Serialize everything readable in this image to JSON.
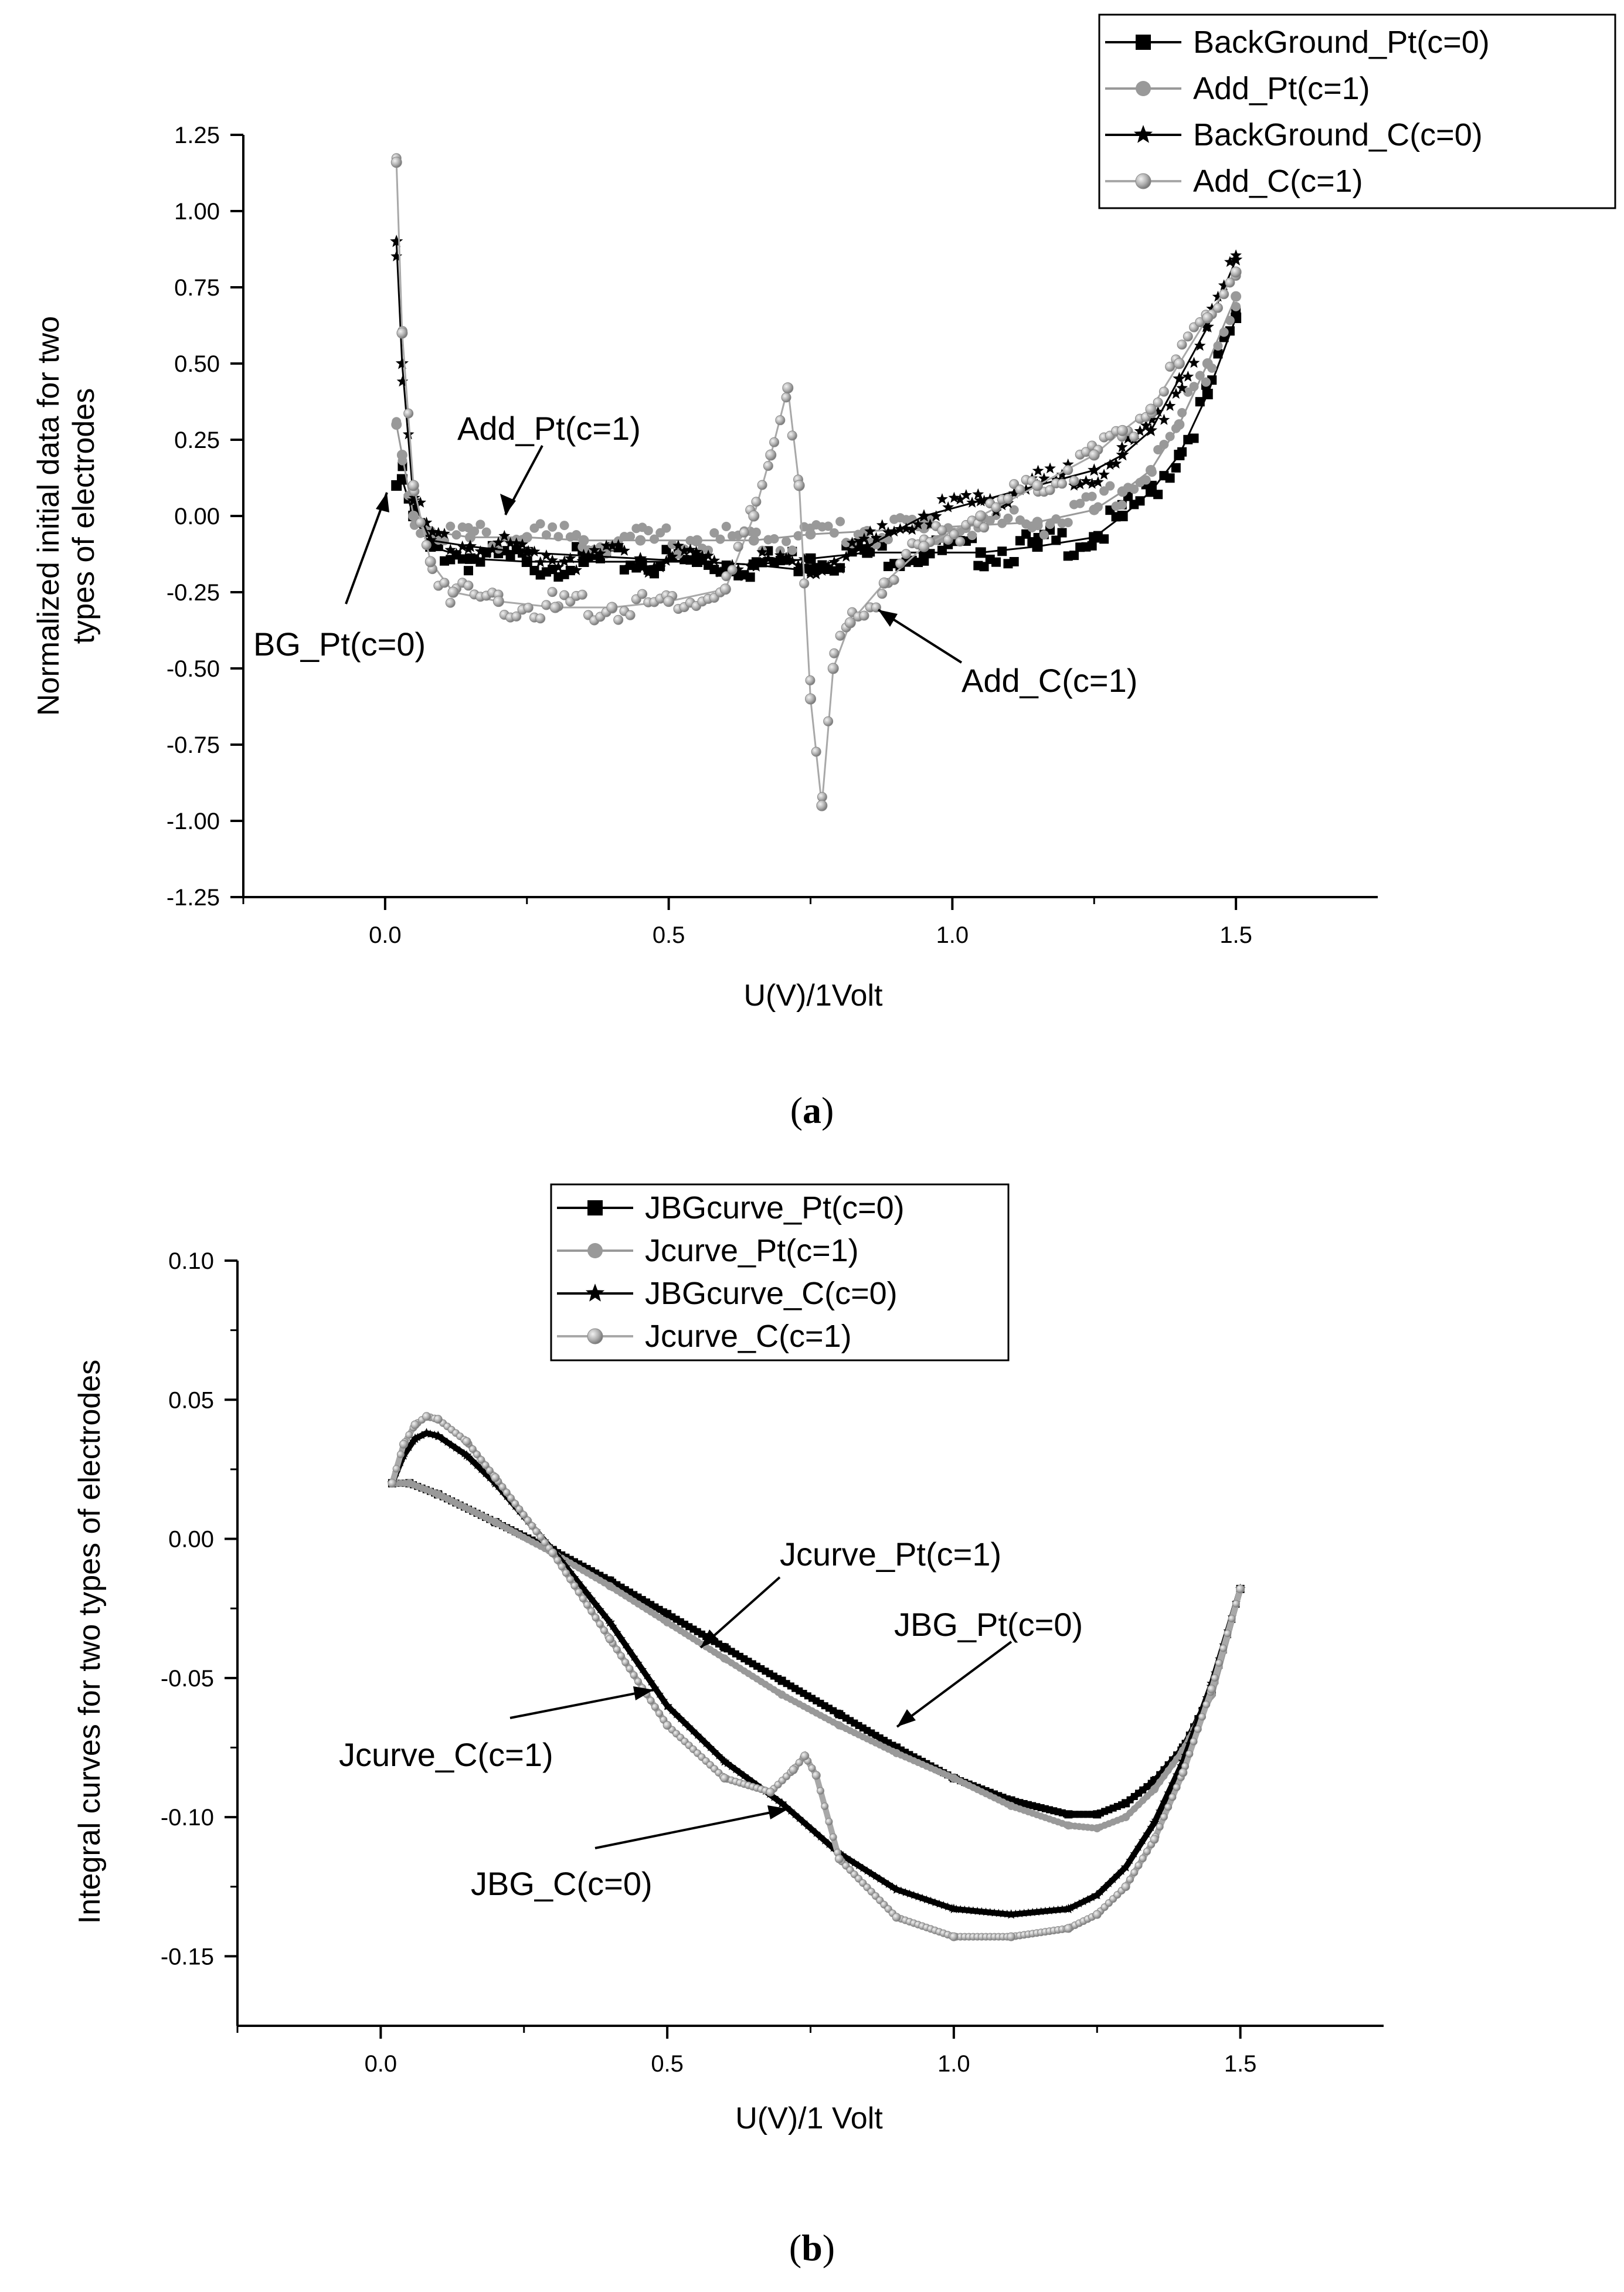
{
  "chart_data": [
    {
      "type": "scatter",
      "panel_label": "a",
      "xlabel": "U(V)/1Volt",
      "ylabel_lines": [
        "Normalized initial data for two",
        "types of electrodes"
      ],
      "xlim": [
        -0.25,
        1.75
      ],
      "ylim": [
        -1.25,
        1.25
      ],
      "xticks": [
        0.0,
        0.5,
        1.0,
        1.5
      ],
      "xtick_labels": [
        "0.0",
        "0.5",
        "1.0",
        "1.5"
      ],
      "yticks": [
        -1.25,
        -1.0,
        -0.75,
        -0.5,
        -0.25,
        0.0,
        0.25,
        0.5,
        0.75,
        1.0,
        1.25
      ],
      "ytick_labels": [
        "-1.25",
        "-1.00",
        "-0.75",
        "-0.50",
        "-0.25",
        "0.00",
        "0.25",
        "0.50",
        "0.75",
        "1.00",
        "1.25"
      ],
      "legend": [
        {
          "label": "BackGround_Pt(c=0)",
          "marker": "square",
          "color": "#000000"
        },
        {
          "label": "Add_Pt(c=1)",
          "marker": "circle",
          "color": "#999999"
        },
        {
          "label": "BackGround_C(c=0)",
          "marker": "star",
          "color": "#000000"
        },
        {
          "label": "Add_C(c=1)",
          "marker": "sphere",
          "color": "#a8a8a8"
        }
      ],
      "series": [
        {
          "name": "BackGround_Pt(c=0)",
          "color": "#000000",
          "x": [
            0.02,
            0.03,
            0.05,
            0.08,
            0.15,
            0.25,
            0.35,
            0.45,
            0.55,
            0.65,
            0.75,
            0.85,
            0.95,
            1.05,
            1.15,
            1.25,
            1.3,
            1.35,
            1.4,
            1.45,
            1.5
          ],
          "y": [
            0.1,
            0.12,
            0.0,
            -0.1,
            -0.14,
            -0.15,
            -0.15,
            -0.15,
            -0.15,
            -0.16,
            -0.14,
            -0.12,
            -0.12,
            -0.12,
            -0.1,
            -0.07,
            0.0,
            0.08,
            0.2,
            0.4,
            0.65
          ]
        },
        {
          "name": "Add_Pt(c=1)",
          "color": "#999999",
          "x": [
            0.02,
            0.03,
            0.05,
            0.08,
            0.15,
            0.25,
            0.35,
            0.45,
            0.55,
            0.65,
            0.75,
            0.85,
            0.95,
            1.05,
            1.15,
            1.25,
            1.3,
            1.35,
            1.4,
            1.45,
            1.5
          ],
          "y": [
            0.3,
            0.2,
            0.0,
            -0.05,
            -0.07,
            -0.07,
            -0.08,
            -0.08,
            -0.08,
            -0.08,
            -0.06,
            -0.05,
            -0.04,
            -0.03,
            -0.02,
            0.02,
            0.08,
            0.15,
            0.3,
            0.5,
            0.72
          ]
        },
        {
          "name": "BackGround_C(c=0)",
          "color": "#000000",
          "x": [
            0.02,
            0.03,
            0.05,
            0.08,
            0.15,
            0.25,
            0.35,
            0.45,
            0.55,
            0.65,
            0.75,
            0.85,
            0.95,
            1.05,
            1.15,
            1.25,
            1.3,
            1.35,
            1.4,
            1.45,
            1.5
          ],
          "y": [
            0.9,
            0.5,
            0.05,
            -0.08,
            -0.1,
            -0.12,
            -0.13,
            -0.14,
            -0.15,
            -0.16,
            -0.18,
            -0.1,
            0.0,
            0.05,
            0.1,
            0.15,
            0.2,
            0.28,
            0.45,
            0.62,
            0.84
          ]
        },
        {
          "name": "Add_C(c=1)",
          "color": "#a8a8a8",
          "x": [
            0.02,
            0.03,
            0.05,
            0.08,
            0.12,
            0.2,
            0.3,
            0.4,
            0.5,
            0.6,
            0.65,
            0.68,
            0.71,
            0.73,
            0.75,
            0.77,
            0.79,
            0.82,
            0.88,
            0.95,
            1.05,
            1.15,
            1.25,
            1.3,
            1.35,
            1.4,
            1.45,
            1.5
          ],
          "y": [
            1.16,
            0.6,
            0.1,
            -0.15,
            -0.25,
            -0.28,
            -0.3,
            -0.3,
            -0.28,
            -0.24,
            0.0,
            0.2,
            0.42,
            0.1,
            -0.6,
            -0.95,
            -0.5,
            -0.35,
            -0.22,
            -0.1,
            0.0,
            0.1,
            0.2,
            0.28,
            0.35,
            0.5,
            0.65,
            0.8
          ]
        }
      ],
      "annotations": [
        {
          "text": "Add_Pt(c=1)"
        },
        {
          "text": "BG_Pt(c=0)"
        },
        {
          "text": "Add_C(c=1)"
        }
      ]
    },
    {
      "type": "line",
      "panel_label": "b",
      "xlabel": "U(V)/1 Volt",
      "ylabel_lines": [
        "Integral curves for two types of electrodes"
      ],
      "xlim": [
        -0.25,
        1.75
      ],
      "ylim": [
        -0.175,
        0.1
      ],
      "xticks": [
        0.0,
        0.5,
        1.0,
        1.5
      ],
      "xtick_labels": [
        "0.0",
        "0.5",
        "1.0",
        "1.5"
      ],
      "yticks": [
        -0.15,
        -0.1,
        -0.05,
        0.0,
        0.05,
        0.1
      ],
      "ytick_labels": [
        "-0.15",
        "-0.10",
        "-0.05",
        "0.00",
        "0.05",
        "0.10"
      ],
      "legend": [
        {
          "label": "JBGcurve_Pt(c=0)",
          "marker": "square",
          "color": "#000000"
        },
        {
          "label": "Jcurve_Pt(c=1)",
          "marker": "circle",
          "color": "#999999"
        },
        {
          "label": "JBGcurve_C(c=0)",
          "marker": "star",
          "color": "#000000"
        },
        {
          "label": "Jcurve_C(c=1)",
          "marker": "sphere",
          "color": "#a8a8a8"
        }
      ],
      "series": [
        {
          "name": "JBGcurve_Pt(c=0)",
          "color": "#000000",
          "x": [
            0.02,
            0.05,
            0.1,
            0.2,
            0.3,
            0.4,
            0.5,
            0.6,
            0.7,
            0.8,
            0.9,
            1.0,
            1.1,
            1.2,
            1.25,
            1.3,
            1.35,
            1.4,
            1.45,
            1.5
          ],
          "y": [
            0.02,
            0.02,
            0.016,
            0.006,
            -0.004,
            -0.015,
            -0.027,
            -0.039,
            -0.051,
            -0.063,
            -0.075,
            -0.086,
            -0.094,
            -0.099,
            -0.099,
            -0.095,
            -0.087,
            -0.075,
            -0.055,
            -0.018
          ]
        },
        {
          "name": "Jcurve_Pt(c=1)",
          "color": "#999999",
          "x": [
            0.02,
            0.05,
            0.1,
            0.2,
            0.3,
            0.4,
            0.5,
            0.6,
            0.7,
            0.8,
            0.9,
            1.0,
            1.1,
            1.2,
            1.25,
            1.3,
            1.35,
            1.4,
            1.45,
            1.5
          ],
          "y": [
            0.02,
            0.02,
            0.016,
            0.006,
            -0.005,
            -0.017,
            -0.03,
            -0.043,
            -0.056,
            -0.067,
            -0.077,
            -0.086,
            -0.096,
            -0.103,
            -0.104,
            -0.1,
            -0.09,
            -0.076,
            -0.056,
            -0.018
          ]
        },
        {
          "name": "JBGcurve_C(c=0)",
          "color": "#000000",
          "x": [
            0.02,
            0.04,
            0.06,
            0.08,
            0.1,
            0.15,
            0.2,
            0.3,
            0.4,
            0.5,
            0.6,
            0.7,
            0.8,
            0.9,
            1.0,
            1.1,
            1.2,
            1.25,
            1.3,
            1.35,
            1.4,
            1.45,
            1.5
          ],
          "y": [
            0.02,
            0.03,
            0.036,
            0.038,
            0.037,
            0.03,
            0.02,
            -0.004,
            -0.03,
            -0.06,
            -0.08,
            -0.095,
            -0.113,
            -0.126,
            -0.133,
            -0.135,
            -0.133,
            -0.128,
            -0.118,
            -0.102,
            -0.08,
            -0.052,
            -0.018
          ]
        },
        {
          "name": "Jcurve_C(c=1)",
          "color": "#a8a8a8",
          "x": [
            0.02,
            0.04,
            0.06,
            0.08,
            0.1,
            0.15,
            0.2,
            0.3,
            0.4,
            0.5,
            0.6,
            0.68,
            0.72,
            0.74,
            0.76,
            0.8,
            0.9,
            1.0,
            1.1,
            1.2,
            1.25,
            1.3,
            1.35,
            1.4,
            1.45,
            1.5
          ],
          "y": [
            0.02,
            0.034,
            0.041,
            0.044,
            0.043,
            0.035,
            0.022,
            -0.005,
            -0.036,
            -0.067,
            -0.086,
            -0.091,
            -0.083,
            -0.078,
            -0.085,
            -0.115,
            -0.136,
            -0.143,
            -0.143,
            -0.14,
            -0.135,
            -0.125,
            -0.108,
            -0.084,
            -0.054,
            -0.018
          ]
        }
      ],
      "annotations": [
        {
          "text": "Jcurve_Pt(c=1)"
        },
        {
          "text": "JBG_Pt(c=0)"
        },
        {
          "text": "Jcurve_C(c=1)"
        },
        {
          "text": "JBG_C(c=0)"
        }
      ]
    }
  ]
}
